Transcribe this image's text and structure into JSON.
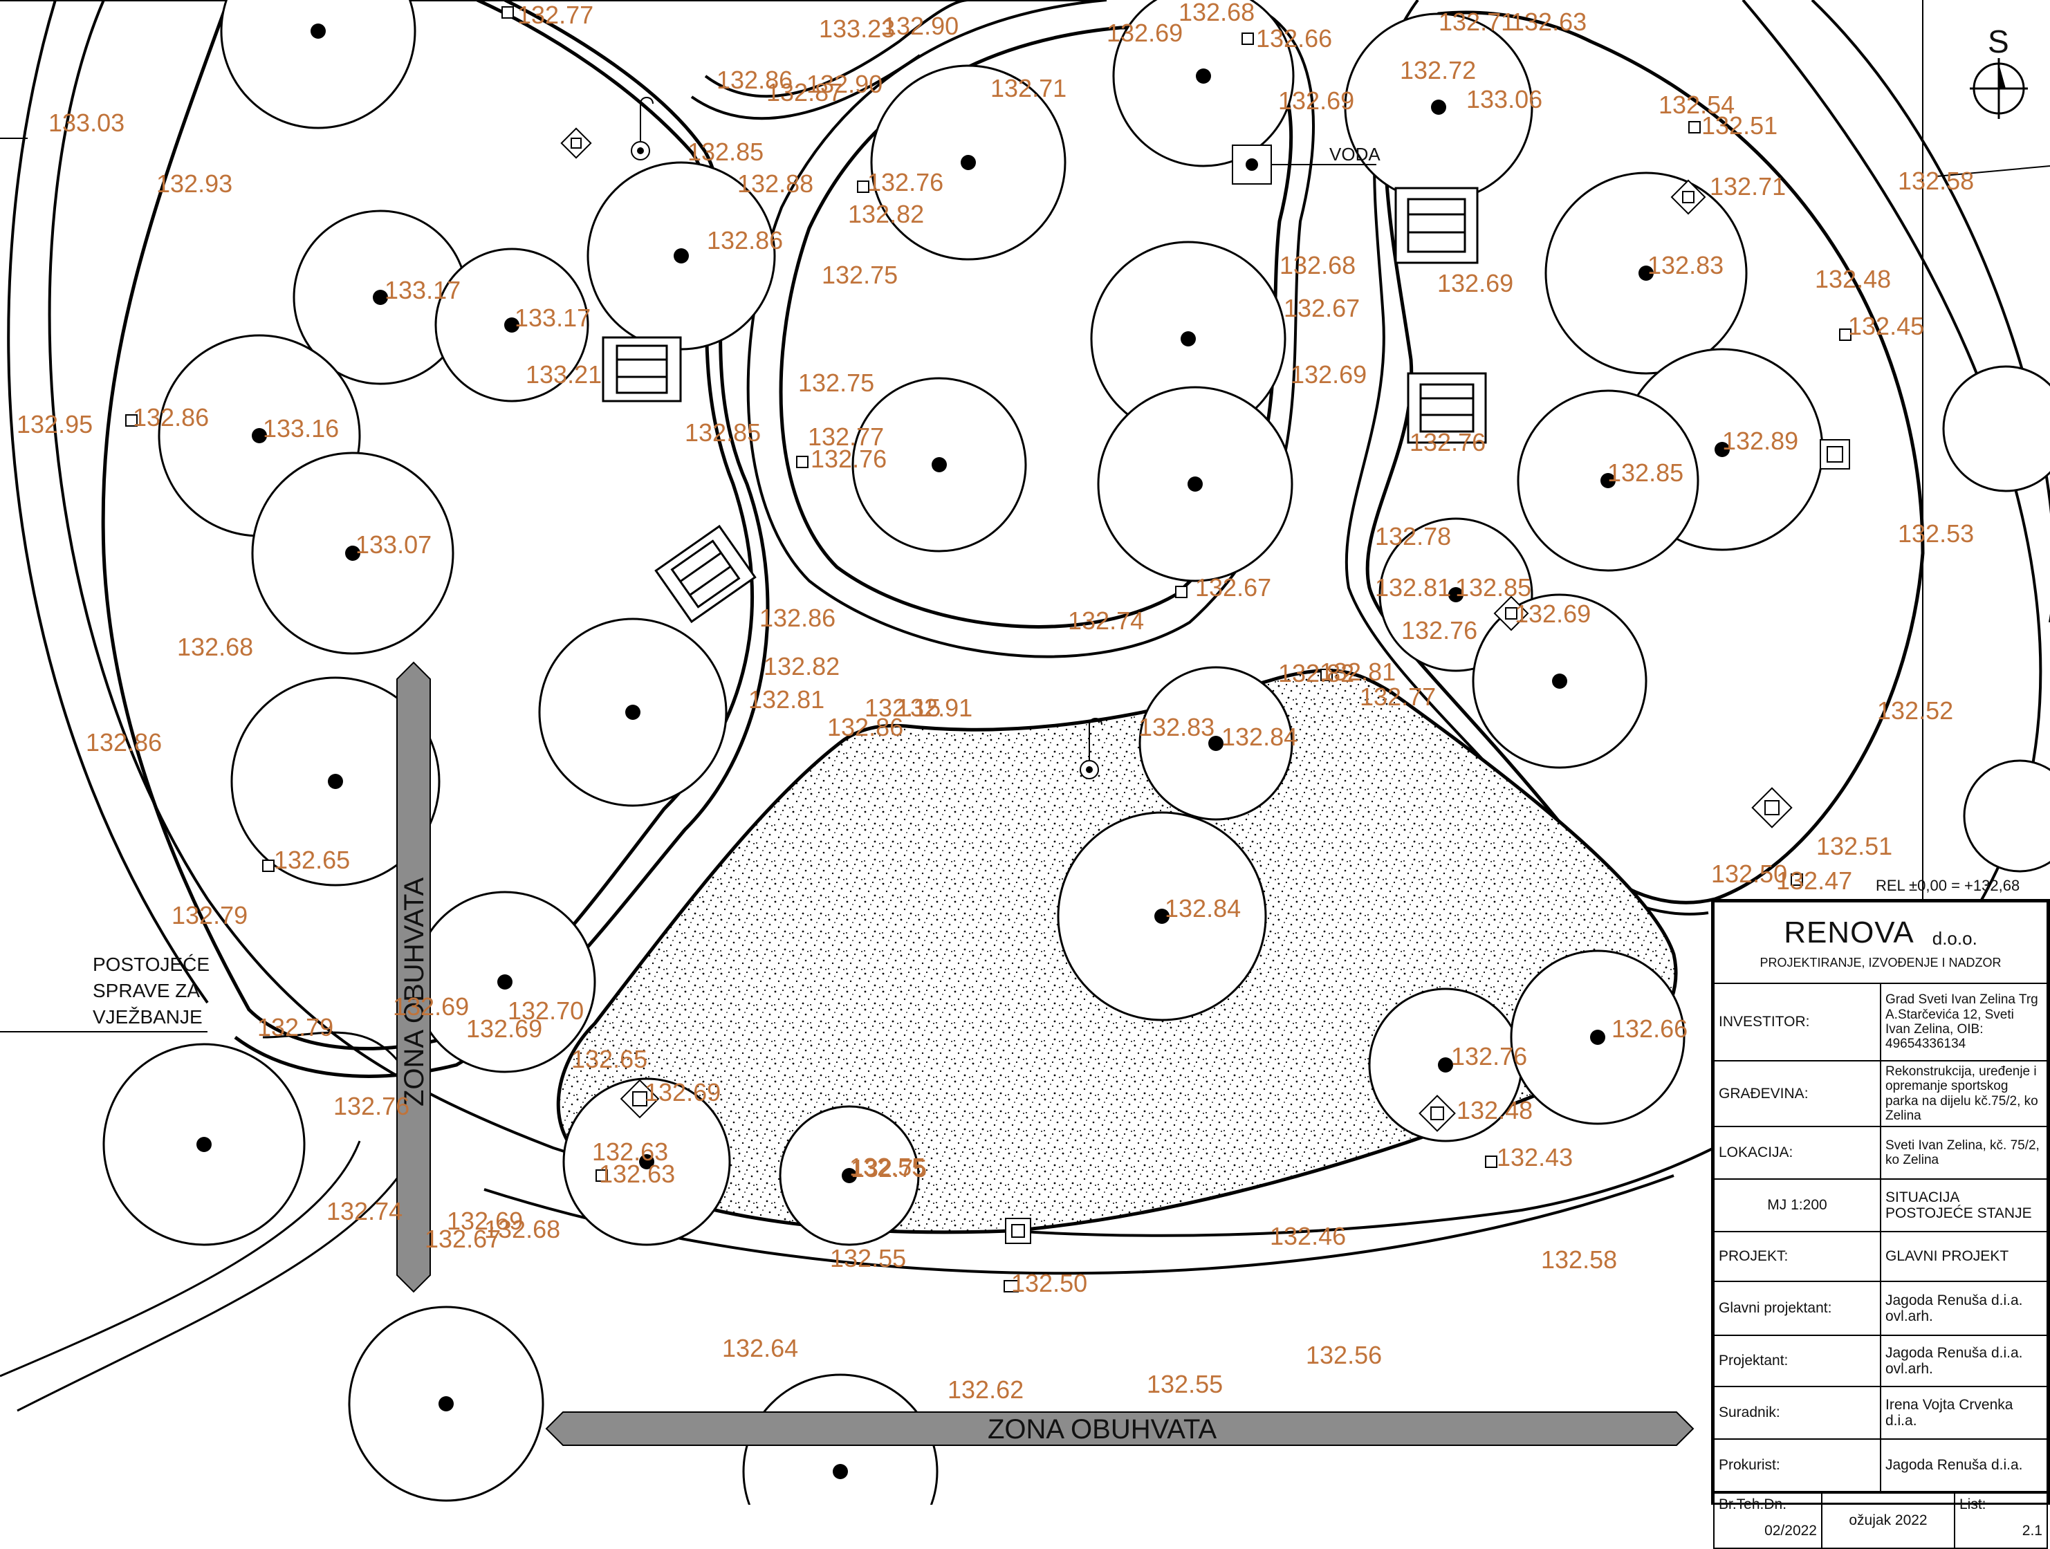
{
  "map": {
    "north_symbol": "S",
    "water_label": "VODA",
    "existing_equipment_label": [
      "POSTOJEĆE",
      "SPRAVE ZA",
      "VJEŽBANJE"
    ],
    "zone_label_horizontal": "ZONA OBUHVATA",
    "zone_label_vertical": "ZONA OBUHVATA",
    "reference_note": "REL ±0,00 = +132,68 mnv"
  },
  "elevations": [
    "132.77",
    "133.23",
    "132.90",
    "132.68",
    "132.69",
    "132.66",
    "132.71",
    "132.63",
    "133.03",
    "132.86",
    "132.87",
    "132.90",
    "132.71",
    "132.72",
    "133.06",
    "132.54",
    "132.51",
    "132.58",
    "132.93",
    "132.85",
    "132.88",
    "132.76",
    "132.82",
    "132.75",
    "132.69",
    "132.71",
    "132.86",
    "133.17",
    "133.17",
    "133.21",
    "132.68",
    "132.67",
    "132.83",
    "132.48",
    "132.45",
    "132.69",
    "132.95",
    "132.86",
    "133.16",
    "132.85",
    "132.75",
    "132.77",
    "132.76",
    "132.89",
    "132.85",
    "133.07",
    "132.69",
    "132.78",
    "132.53",
    "132.81",
    "132.85",
    "132.69",
    "132.86",
    "132.74",
    "132.67",
    "132.76",
    "132.68",
    "132.82",
    "132.81",
    "132.91",
    "132.86",
    "132.83",
    "132.84",
    "132.82",
    "132.81",
    "132.77",
    "132.52",
    "132.86",
    "132.65",
    "132.84",
    "132.51",
    "132.50",
    "132.47",
    "132.79",
    "132.69",
    "132.70",
    "132.69",
    "132.65",
    "132.69",
    "132.76",
    "132.48",
    "132.79",
    "132.63",
    "132.63",
    "132.43",
    "132.55",
    "132.74",
    "132.69",
    "132.67",
    "132.68",
    "132.55",
    "132.46",
    "132.58",
    "132.50",
    "132.64",
    "132.56",
    "132.62",
    "132.55",
    "132.66",
    "132.76",
    "132.15",
    "132.75",
    "132.76"
  ],
  "title_block": {
    "company": "RENOVA",
    "company_suffix": "d.o.o.",
    "company_subtitle": "PROJEKTIRANJE, IZVOĐENJE I NADZOR",
    "investor_label": "INVESTITOR:",
    "investor_value": "Grad Sveti Ivan Zelina Trg A.Starčevića 12, Sveti Ivan Zelina, OIB: 49654336134",
    "building_label": "GRAĐEVINA:",
    "building_value": "Rekonstrukcija, uređenje i opremanje sportskog parka na dijelu kč.75/2, ko Zelina",
    "location_label": "LOKACIJA:",
    "location_value": "Sveti Ivan Zelina, kč. 75/2, ko Zelina",
    "scale": "MJ 1:200",
    "drawing_title_1": "SITUACIJA",
    "drawing_title_2": "POSTOJEĆE STANJE",
    "project_label": "PROJEKT:",
    "project_value": "GLAVNI PROJEKT",
    "chief_designer_label": "Glavni projektant:",
    "chief_designer_value": "Jagoda Renuša d.i.a. ovl.arh.",
    "designer_label": "Projektant:",
    "designer_value": "Jagoda Renuša d.i.a. ovl.arh.",
    "associate_label": "Suradnik:",
    "associate_value": "Irena Vojta Crvenka d.i.a.",
    "proxy_label": "Prokurist:",
    "proxy_value": "Jagoda Renuša d.i.a.",
    "tech_no_label": "Br.Teh.Dn.",
    "tech_no_value": "02/2022",
    "date_value": "ožujak 2022",
    "sheet_label": "List:",
    "sheet_value": "2.1"
  },
  "colors": {
    "elevation_text": "#c0733a",
    "zone_arrow": "#8c8c8c",
    "line": "#000000"
  }
}
